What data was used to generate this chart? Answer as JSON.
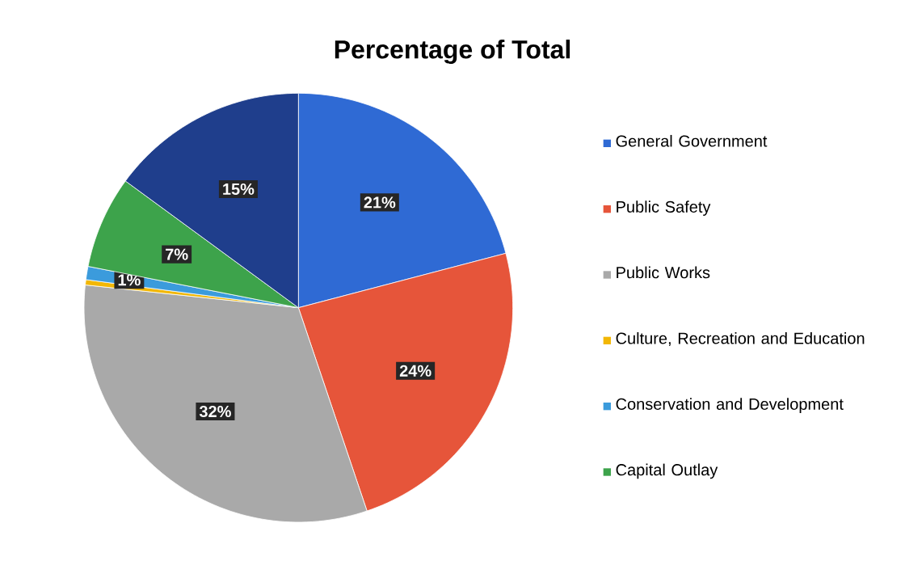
{
  "chart_data": {
    "type": "pie",
    "title": "Percentage of Total",
    "categories": [
      "General Government",
      "Public Safety",
      "Public Works",
      "Culture, Recreation and Education",
      "Conservation and Development",
      "Capital Outlay",
      null
    ],
    "values": [
      21,
      24,
      32,
      0.4,
      1,
      7,
      15
    ],
    "value_labels": [
      "21%",
      "24%",
      "32%",
      null,
      "1%",
      "7%",
      "15%"
    ],
    "colors": [
      "#2f6ad4",
      "#e6553a",
      "#a9a9a9",
      "#f2b705",
      "#3b9bdc",
      "#3da34b",
      "#1f3e8c"
    ],
    "legend": "right"
  }
}
